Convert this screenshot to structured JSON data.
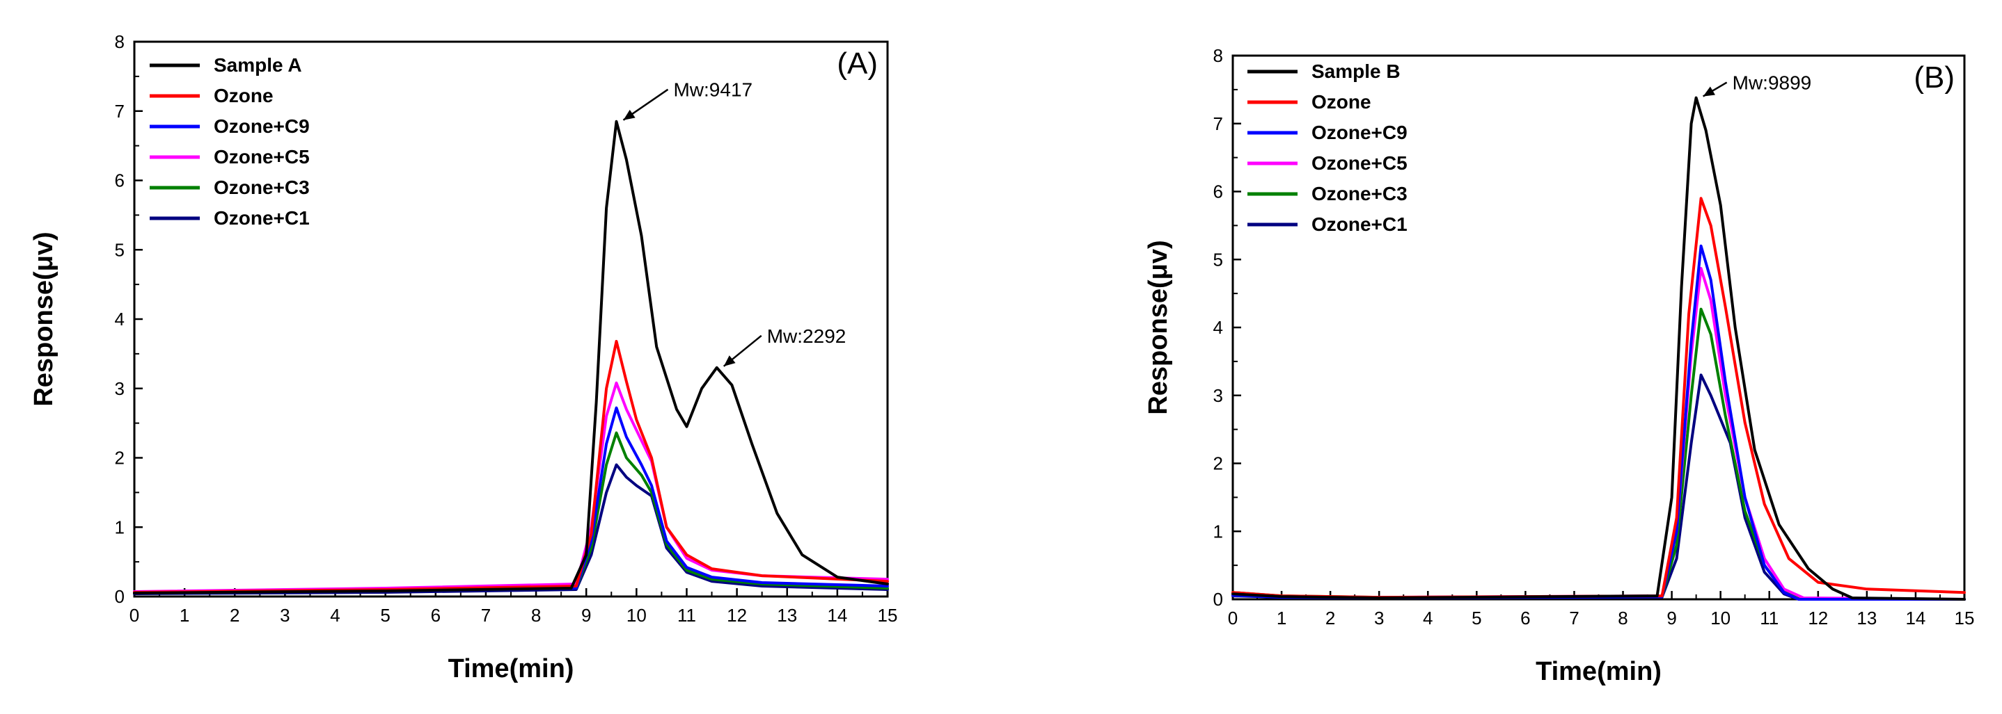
{
  "chart_data": [
    {
      "type": "line",
      "panel_label": "(A)",
      "xlabel": "Time(min)",
      "ylabel": "Response(μv)",
      "xlim": [
        0,
        15
      ],
      "ylim": [
        0,
        8
      ],
      "x_ticks": [
        "0",
        "1",
        "2",
        "3",
        "4",
        "5",
        "6",
        "7",
        "8",
        "9",
        "10",
        "11",
        "12",
        "13",
        "14",
        "15"
      ],
      "y_ticks": [
        "0",
        "1",
        "2",
        "3",
        "4",
        "5",
        "6",
        "7",
        "8"
      ],
      "grid": false,
      "legend_position": "top-left",
      "series": [
        {
          "name": "Sample A",
          "color": "#000000",
          "points": [
            [
              0,
              0.05
            ],
            [
              5,
              0.08
            ],
            [
              8.7,
              0.12
            ],
            [
              9.0,
              0.6
            ],
            [
              9.2,
              2.8
            ],
            [
              9.4,
              5.6
            ],
            [
              9.6,
              6.85
            ],
            [
              9.8,
              6.3
            ],
            [
              10.1,
              5.2
            ],
            [
              10.4,
              3.6
            ],
            [
              10.8,
              2.7
            ],
            [
              11.0,
              2.45
            ],
            [
              11.3,
              3.0
            ],
            [
              11.6,
              3.3
            ],
            [
              11.9,
              3.05
            ],
            [
              12.3,
              2.2
            ],
            [
              12.8,
              1.2
            ],
            [
              13.3,
              0.6
            ],
            [
              14.0,
              0.28
            ],
            [
              15,
              0.18
            ]
          ]
        },
        {
          "name": "Ozone",
          "color": "#ff0000",
          "points": [
            [
              0,
              0.06
            ],
            [
              5,
              0.1
            ],
            [
              8.8,
              0.15
            ],
            [
              9.1,
              0.9
            ],
            [
              9.4,
              3.0
            ],
            [
              9.6,
              3.68
            ],
            [
              9.8,
              3.1
            ],
            [
              10.0,
              2.55
            ],
            [
              10.3,
              2.0
            ],
            [
              10.6,
              1.0
            ],
            [
              11.0,
              0.6
            ],
            [
              11.5,
              0.4
            ],
            [
              12.5,
              0.3
            ],
            [
              15,
              0.22
            ]
          ]
        },
        {
          "name": "Ozone+C9",
          "color": "#0000ff",
          "points": [
            [
              0,
              0.05
            ],
            [
              5,
              0.08
            ],
            [
              8.8,
              0.12
            ],
            [
              9.1,
              0.8
            ],
            [
              9.4,
              2.2
            ],
            [
              9.6,
              2.72
            ],
            [
              9.8,
              2.3
            ],
            [
              10.1,
              1.9
            ],
            [
              10.3,
              1.6
            ],
            [
              10.6,
              0.8
            ],
            [
              11.0,
              0.42
            ],
            [
              11.5,
              0.28
            ],
            [
              12.5,
              0.2
            ],
            [
              15,
              0.15
            ]
          ]
        },
        {
          "name": "Ozone+C5",
          "color": "#ff00ff",
          "points": [
            [
              0,
              0.07
            ],
            [
              5,
              0.12
            ],
            [
              8.8,
              0.18
            ],
            [
              9.1,
              1.0
            ],
            [
              9.4,
              2.6
            ],
            [
              9.6,
              3.08
            ],
            [
              9.8,
              2.7
            ],
            [
              10.1,
              2.25
            ],
            [
              10.3,
              1.95
            ],
            [
              10.6,
              1.0
            ],
            [
              11.0,
              0.55
            ],
            [
              11.5,
              0.38
            ],
            [
              12.5,
              0.3
            ],
            [
              15,
              0.25
            ]
          ]
        },
        {
          "name": "Ozone+C3",
          "color": "#008000",
          "points": [
            [
              0,
              0.05
            ],
            [
              5,
              0.08
            ],
            [
              8.8,
              0.12
            ],
            [
              9.1,
              0.7
            ],
            [
              9.4,
              1.9
            ],
            [
              9.6,
              2.36
            ],
            [
              9.8,
              2.0
            ],
            [
              10.1,
              1.75
            ],
            [
              10.3,
              1.5
            ],
            [
              10.6,
              0.75
            ],
            [
              11.0,
              0.38
            ],
            [
              11.5,
              0.25
            ],
            [
              12.5,
              0.18
            ],
            [
              15,
              0.12
            ]
          ]
        },
        {
          "name": "Ozone+C1",
          "color": "#000080",
          "points": [
            [
              0,
              0.04
            ],
            [
              5,
              0.06
            ],
            [
              8.8,
              0.1
            ],
            [
              9.1,
              0.6
            ],
            [
              9.4,
              1.5
            ],
            [
              9.6,
              1.9
            ],
            [
              9.8,
              1.72
            ],
            [
              10.0,
              1.6
            ],
            [
              10.3,
              1.45
            ],
            [
              10.6,
              0.7
            ],
            [
              11.0,
              0.35
            ],
            [
              11.5,
              0.22
            ],
            [
              12.5,
              0.15
            ],
            [
              15,
              0.1
            ]
          ]
        }
      ],
      "annotations": [
        {
          "text": "Mw:9417",
          "x": 9.6,
          "y": 6.85
        },
        {
          "text": "Mw:2292",
          "x": 11.6,
          "y": 3.3
        }
      ]
    },
    {
      "type": "line",
      "panel_label": "(B)",
      "xlabel": "Time(min)",
      "ylabel": "Response(μv)",
      "xlim": [
        0,
        15
      ],
      "ylim": [
        0,
        8
      ],
      "x_ticks": [
        "0",
        "1",
        "2",
        "3",
        "4",
        "5",
        "6",
        "7",
        "8",
        "9",
        "10",
        "11",
        "12",
        "13",
        "14",
        "15"
      ],
      "y_ticks": [
        "0",
        "1",
        "2",
        "3",
        "4",
        "5",
        "6",
        "7",
        "8"
      ],
      "grid": false,
      "legend_position": "top-left",
      "series": [
        {
          "name": "Sample B",
          "color": "#000000",
          "points": [
            [
              0,
              0.08
            ],
            [
              1,
              0.04
            ],
            [
              3,
              0.02
            ],
            [
              8.7,
              0.05
            ],
            [
              9.0,
              1.5
            ],
            [
              9.2,
              4.6
            ],
            [
              9.4,
              7.0
            ],
            [
              9.5,
              7.38
            ],
            [
              9.7,
              6.9
            ],
            [
              10.0,
              5.8
            ],
            [
              10.3,
              4.0
            ],
            [
              10.7,
              2.2
            ],
            [
              11.2,
              1.1
            ],
            [
              11.8,
              0.45
            ],
            [
              12.3,
              0.15
            ],
            [
              12.7,
              0.02
            ],
            [
              15,
              0.0
            ]
          ]
        },
        {
          "name": "Ozone",
          "color": "#ff0000",
          "points": [
            [
              0,
              0.1
            ],
            [
              1,
              0.05
            ],
            [
              3,
              0.03
            ],
            [
              8.8,
              0.05
            ],
            [
              9.1,
              1.2
            ],
            [
              9.35,
              4.2
            ],
            [
              9.6,
              5.9
            ],
            [
              9.8,
              5.5
            ],
            [
              10.1,
              4.3
            ],
            [
              10.5,
              2.6
            ],
            [
              10.9,
              1.4
            ],
            [
              11.4,
              0.6
            ],
            [
              12.0,
              0.25
            ],
            [
              13,
              0.15
            ],
            [
              15,
              0.1
            ]
          ]
        },
        {
          "name": "Ozone+C9",
          "color": "#0000ff",
          "points": [
            [
              0,
              0.06
            ],
            [
              1,
              0.03
            ],
            [
              3,
              0.02
            ],
            [
              8.8,
              0.04
            ],
            [
              9.1,
              1.0
            ],
            [
              9.4,
              3.8
            ],
            [
              9.6,
              5.2
            ],
            [
              9.8,
              4.7
            ],
            [
              10.1,
              3.2
            ],
            [
              10.5,
              1.5
            ],
            [
              10.9,
              0.5
            ],
            [
              11.3,
              0.1
            ],
            [
              11.6,
              0.0
            ],
            [
              15,
              0.0
            ]
          ]
        },
        {
          "name": "Ozone+C5",
          "color": "#ff00ff",
          "points": [
            [
              0,
              0.06
            ],
            [
              1,
              0.04
            ],
            [
              3,
              0.03
            ],
            [
              8.8,
              0.05
            ],
            [
              9.1,
              1.0
            ],
            [
              9.4,
              3.6
            ],
            [
              9.6,
              4.87
            ],
            [
              9.8,
              4.4
            ],
            [
              10.1,
              3.0
            ],
            [
              10.5,
              1.5
            ],
            [
              10.9,
              0.6
            ],
            [
              11.3,
              0.15
            ],
            [
              11.7,
              0.02
            ],
            [
              15,
              0.0
            ]
          ]
        },
        {
          "name": "Ozone+C3",
          "color": "#008000",
          "points": [
            [
              0,
              0.1
            ],
            [
              1,
              0.05
            ],
            [
              3,
              0.03
            ],
            [
              8.8,
              0.04
            ],
            [
              9.1,
              0.8
            ],
            [
              9.4,
              3.0
            ],
            [
              9.6,
              4.27
            ],
            [
              9.8,
              3.9
            ],
            [
              10.1,
              2.7
            ],
            [
              10.5,
              1.3
            ],
            [
              10.9,
              0.5
            ],
            [
              11.3,
              0.12
            ],
            [
              11.7,
              0.0
            ],
            [
              15,
              0.0
            ]
          ]
        },
        {
          "name": "Ozone+C1",
          "color": "#000080",
          "points": [
            [
              0,
              0.05
            ],
            [
              1,
              0.03
            ],
            [
              3,
              0.02
            ],
            [
              8.8,
              0.03
            ],
            [
              9.1,
              0.6
            ],
            [
              9.4,
              2.3
            ],
            [
              9.6,
              3.3
            ],
            [
              9.8,
              3.0
            ],
            [
              10.2,
              2.3
            ],
            [
              10.5,
              1.2
            ],
            [
              10.9,
              0.4
            ],
            [
              11.3,
              0.08
            ],
            [
              11.6,
              0.0
            ],
            [
              15,
              0.0
            ]
          ]
        }
      ],
      "annotations": [
        {
          "text": "Mw:9899",
          "x": 9.5,
          "y": 7.38
        }
      ]
    }
  ]
}
